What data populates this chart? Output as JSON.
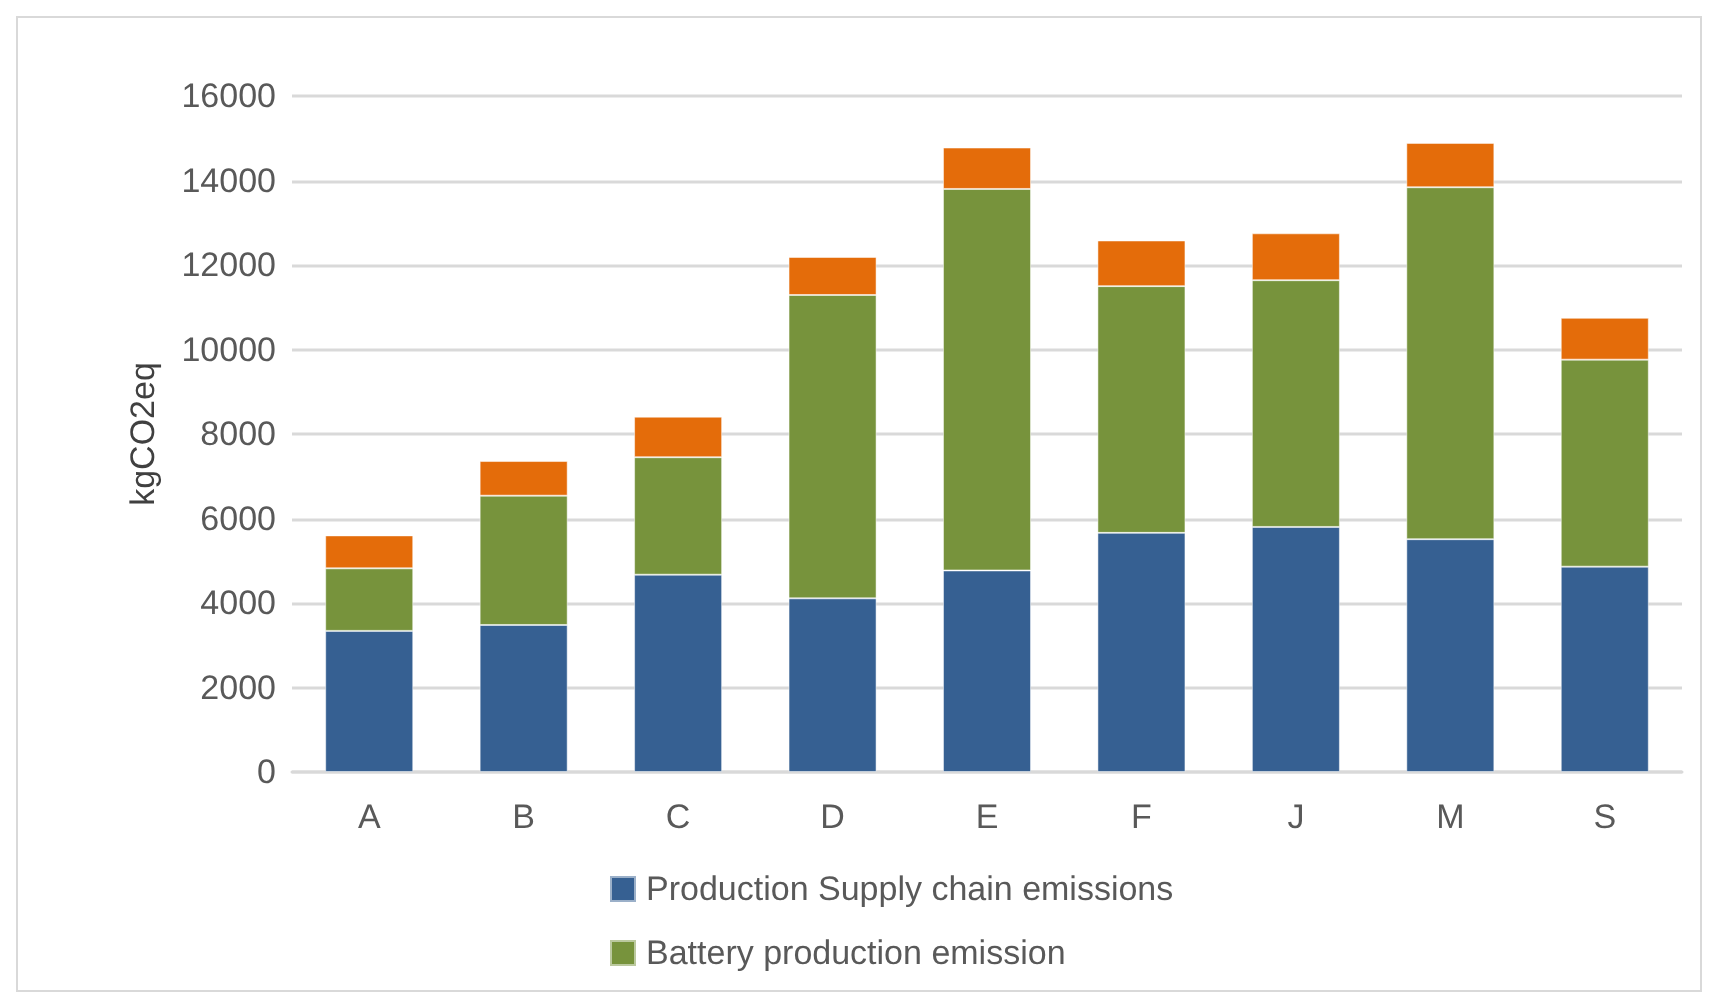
{
  "chart_data": {
    "type": "bar",
    "stacked": true,
    "ylabel": "kgCO2eq",
    "categories": [
      "A",
      "B",
      "C",
      "D",
      "E",
      "F",
      "J",
      "M",
      "S"
    ],
    "series": [
      {
        "name": "Production Supply chain emissions",
        "color": "#366092",
        "values": [
          3340,
          3480,
          4670,
          4110,
          4770,
          5660,
          5800,
          5510,
          4860
        ]
      },
      {
        "name": "Battery production emission",
        "color": "#77933c",
        "values": [
          1480,
          3060,
          2780,
          7180,
          9030,
          5840,
          5840,
          8330,
          4900
        ]
      },
      {
        "color": "#e46c0a",
        "values": [
          780,
          820,
          960,
          900,
          980,
          1080,
          1110,
          1050,
          990
        ]
      }
    ],
    "ylim": [
      0,
      16000
    ],
    "yticks": [
      0,
      2000,
      4000,
      6000,
      8000,
      10000,
      12000,
      14000,
      16000
    ],
    "grid": "y",
    "legend": "bottom"
  }
}
